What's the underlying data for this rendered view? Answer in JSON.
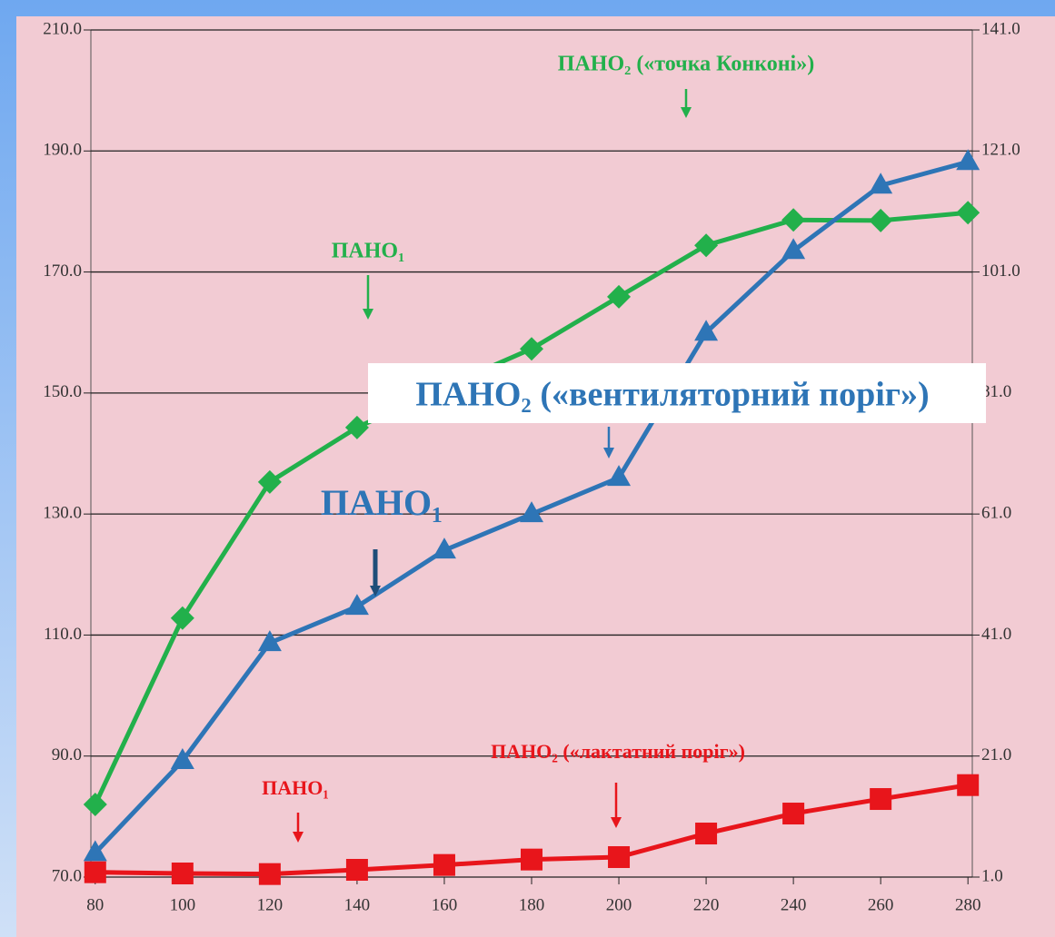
{
  "chart_data": {
    "type": "line",
    "x": [
      80,
      100,
      120,
      140,
      160,
      180,
      200,
      220,
      240,
      260,
      280
    ],
    "xlim": [
      79,
      281
    ],
    "xticks": [
      80,
      100,
      120,
      140,
      160,
      180,
      200,
      220,
      240,
      260,
      280
    ],
    "ylim": [
      70,
      210
    ],
    "yticks": [
      {
        "value": 70,
        "label": "70.0"
      },
      {
        "value": 90,
        "label": "90.0"
      },
      {
        "value": 110,
        "label": "110.0"
      },
      {
        "value": 130,
        "label": "130.0"
      },
      {
        "value": 150,
        "label": "150.0"
      },
      {
        "value": 170,
        "label": "170.0"
      },
      {
        "value": 190,
        "label": "190.0"
      },
      {
        "value": 210,
        "label": "210.0"
      }
    ],
    "y2lim": [
      1,
      141
    ],
    "y2ticks": [
      {
        "value": 1,
        "label": "1.0"
      },
      {
        "value": 21,
        "label": "21.0"
      },
      {
        "value": 41,
        "label": "41.0"
      },
      {
        "value": 61,
        "label": "61.0"
      },
      {
        "value": 81,
        "label": "81.0"
      },
      {
        "value": 101,
        "label": "101.0"
      },
      {
        "value": 121,
        "label": "121.0"
      },
      {
        "value": 141,
        "label": "141.0"
      }
    ],
    "grid": true,
    "series": [
      {
        "color": "#22b04b",
        "marker": "diamond",
        "values": [
          82,
          112.8,
          135.3,
          144.3,
          151,
          157.3,
          165.9,
          174.4,
          178.6,
          178.5,
          179.8
        ]
      },
      {
        "color": "#2e75b6",
        "marker": "triangle",
        "axis": "y2",
        "values": [
          5,
          20.2,
          39.7,
          45.7,
          55,
          61,
          67,
          91,
          104.5,
          115.3,
          119.2
        ]
      },
      {
        "color": "#e8151b",
        "marker": "square",
        "axis": "y2",
        "values": [
          1.8,
          1.6,
          1.5,
          2.2,
          3,
          3.9,
          4.3,
          8.2,
          11.5,
          13.9,
          16.2
        ]
      }
    ],
    "annotations": [
      {
        "text": "ПАНО₂ («точка Конконі»)",
        "color": "#22b04b"
      },
      {
        "text": "ПАНО₁",
        "color": "#22b04b"
      },
      {
        "text": "ПАНО₂ («вентиляторний поріг»)",
        "color": "#2e75b6"
      },
      {
        "text": "ПАНО₁",
        "color": "#2e75b6"
      },
      {
        "text": "ПАНО₂ («лактатний поріг»)",
        "color": "#e8151b"
      },
      {
        "text": "ПАНО₁",
        "color": "#e8151b"
      }
    ]
  }
}
